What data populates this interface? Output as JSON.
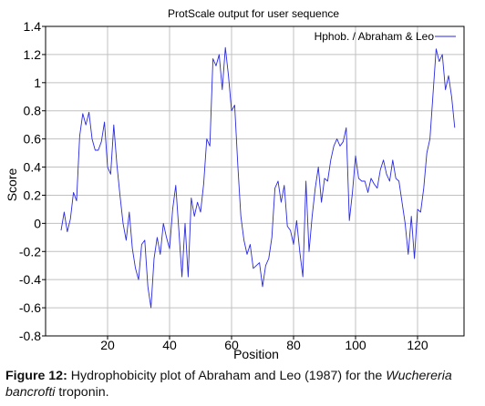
{
  "chart_data": {
    "type": "line",
    "title": "ProtScale output for user sequence",
    "xlabel": "Position",
    "ylabel": "Score",
    "xlim": [
      0,
      135
    ],
    "ylim": [
      -0.8,
      1.4
    ],
    "xticks": [
      20,
      40,
      60,
      80,
      100,
      120
    ],
    "yticks": [
      -0.8,
      -0.6,
      -0.4,
      -0.2,
      0,
      0.2,
      0.4,
      0.6,
      0.8,
      1,
      1.2,
      1.4
    ],
    "ytick_labels": [
      "-0.8",
      "-0.6",
      "-0.4",
      "-0.2",
      "0",
      "0.2",
      "0.4",
      "0.6",
      "0.8",
      "1",
      "1.2",
      "1.4"
    ],
    "grid": true,
    "legend_position": "top-right",
    "series": [
      {
        "name": "Hphob. / Abraham & Leo",
        "color": "#2a2ae0",
        "x": [
          5,
          6,
          7,
          8,
          9,
          10,
          11,
          12,
          13,
          14,
          15,
          16,
          17,
          18,
          19,
          20,
          21,
          22,
          23,
          24,
          25,
          26,
          27,
          28,
          29,
          30,
          31,
          32,
          33,
          34,
          35,
          36,
          37,
          38,
          39,
          40,
          41,
          42,
          43,
          44,
          45,
          46,
          47,
          48,
          49,
          50,
          51,
          52,
          53,
          54,
          55,
          56,
          57,
          58,
          59,
          60,
          61,
          62,
          63,
          64,
          65,
          66,
          67,
          68,
          69,
          70,
          71,
          72,
          73,
          74,
          75,
          76,
          77,
          78,
          79,
          80,
          81,
          82,
          83,
          84,
          85,
          86,
          87,
          88,
          89,
          90,
          91,
          92,
          93,
          94,
          95,
          96,
          97,
          98,
          99,
          100,
          101,
          102,
          103,
          104,
          105,
          106,
          107,
          108,
          109,
          110,
          111,
          112,
          113,
          114,
          115,
          116,
          117,
          118,
          119,
          120,
          121,
          122,
          123,
          124,
          125,
          126,
          127,
          128,
          129,
          130,
          131,
          132
        ],
        "y": [
          -0.05,
          0.08,
          -0.06,
          0.03,
          0.22,
          0.16,
          0.62,
          0.78,
          0.7,
          0.79,
          0.6,
          0.52,
          0.52,
          0.58,
          0.72,
          0.4,
          0.35,
          0.7,
          0.42,
          0.2,
          0.0,
          -0.12,
          0.08,
          -0.18,
          -0.32,
          -0.4,
          -0.15,
          -0.12,
          -0.45,
          -0.6,
          -0.25,
          -0.1,
          -0.22,
          0.0,
          -0.1,
          -0.18,
          0.1,
          0.27,
          -0.05,
          -0.38,
          0.0,
          -0.38,
          0.18,
          0.05,
          0.15,
          0.08,
          0.28,
          0.6,
          0.55,
          1.17,
          1.12,
          1.2,
          0.95,
          1.25,
          1.05,
          0.8,
          0.84,
          0.42,
          0.05,
          -0.12,
          -0.22,
          -0.15,
          -0.32,
          -0.3,
          -0.28,
          -0.45,
          -0.3,
          -0.25,
          -0.1,
          0.25,
          0.3,
          0.15,
          0.27,
          -0.02,
          -0.05,
          -0.15,
          0.02,
          -0.2,
          -0.38,
          0.3,
          -0.2,
          0.05,
          0.25,
          0.4,
          0.15,
          0.32,
          0.3,
          0.45,
          0.55,
          0.6,
          0.55,
          0.58,
          0.68,
          0.02,
          0.22,
          0.48,
          0.32,
          0.3,
          0.3,
          0.22,
          0.32,
          0.28,
          0.25,
          0.38,
          0.45,
          0.35,
          0.3,
          0.45,
          0.32,
          0.3,
          0.15,
          0.0,
          -0.22,
          0.05,
          -0.25,
          0.1,
          0.08,
          0.25,
          0.5,
          0.6,
          0.92,
          1.24,
          1.15,
          1.2,
          0.95,
          1.05,
          0.9,
          0.68
        ]
      }
    ]
  },
  "caption": {
    "label": "Figure 12:",
    "text": " Hydrophobicity plot of Abraham and Leo (1987) for the ",
    "species": "Wuchereria bancrofti",
    "tail": " troponin."
  }
}
